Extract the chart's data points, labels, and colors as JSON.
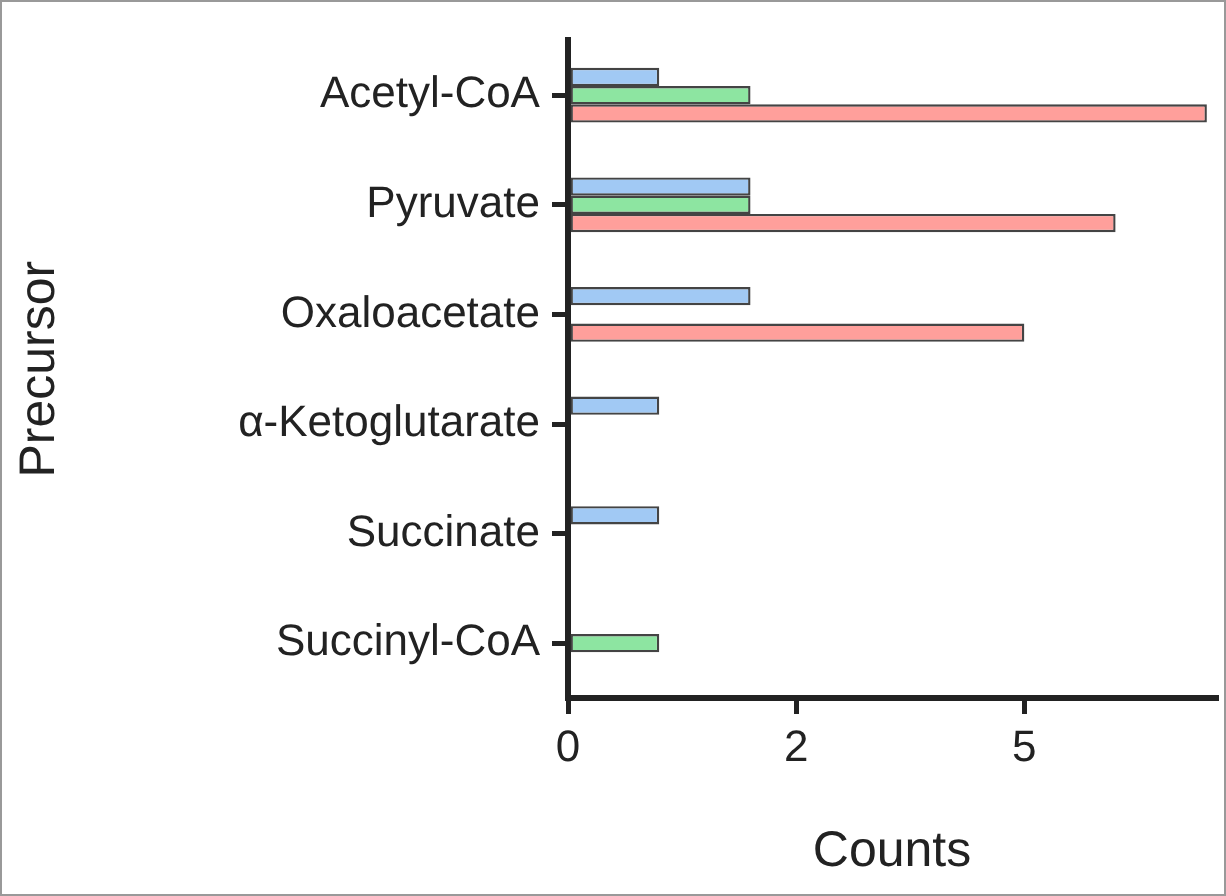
{
  "chart_data": {
    "type": "bar",
    "orientation": "horizontal",
    "xlabel": "Counts",
    "ylabel": "Precursor",
    "categories": [
      "Acetyl-CoA",
      "Pyruvate",
      "Oxaloacetate",
      "α-Ketoglutarate",
      "Succinate",
      "Succinyl-CoA"
    ],
    "series": [
      {
        "color": "#a1c9f4",
        "values": [
          1,
          2,
          2,
          1,
          1,
          null
        ]
      },
      {
        "color": "#8de5a1",
        "values": [
          2,
          2,
          null,
          null,
          null,
          1
        ]
      },
      {
        "color": "#ff9f9b",
        "values": [
          7,
          6,
          5,
          null,
          null,
          null
        ]
      }
    ],
    "xlim": [
      0,
      7.1
    ],
    "xticks": [
      0,
      {
        "value": 2.5,
        "label": "2"
      },
      5
    ],
    "grid": false,
    "legend": false
  }
}
